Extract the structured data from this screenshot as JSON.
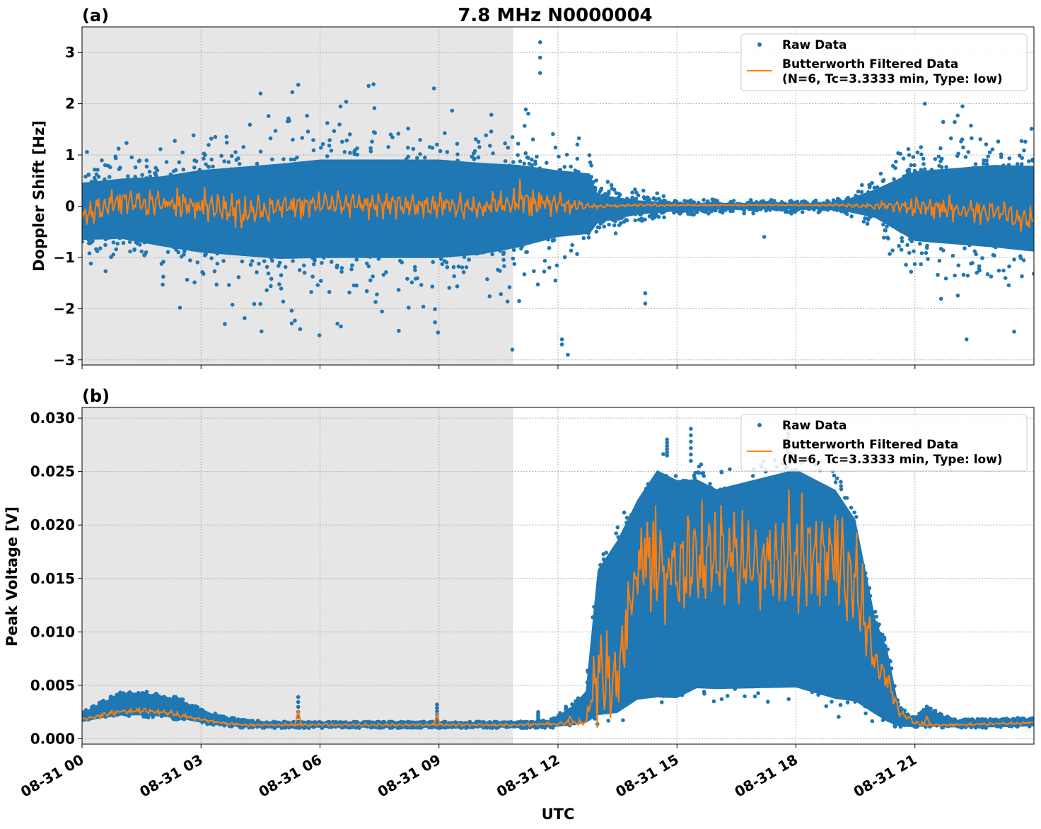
{
  "figure": {
    "title": "7.8 MHz N0000004",
    "xlabel": "UTC",
    "xtick_labels": [
      "08-31 00",
      "08-31 03",
      "08-31 06",
      "08-31 09",
      "08-31 12",
      "08-31 15",
      "08-31 18",
      "08-31 21"
    ],
    "night_shade_until": "08-31 10:52",
    "night_shade_color": "#e6e6e6"
  },
  "legend": {
    "raw_label": "Raw Data",
    "filt_label_1": "Butterworth Filtered Data",
    "filt_label_2": "(N=6, Tc=3.3333 min, Type: low)",
    "raw_color": "#1f77b4",
    "filt_color": "#ff7f0e"
  },
  "chart_data": [
    {
      "type": "scatter",
      "panel": "(a)",
      "ylabel": "Doppler Shift [Hz]",
      "xlim": [
        "08-31 00:00",
        "09-01 00:00"
      ],
      "ylim": [
        -3.1,
        3.5
      ],
      "yticks": [
        -3,
        -2,
        -1,
        0,
        1,
        2,
        3
      ],
      "ytick_labels": [
        "−3",
        "−2",
        "−1",
        "0",
        "1",
        "2",
        "3"
      ],
      "grid": true,
      "legend_position": "top-right",
      "x_hours": [
        0,
        1,
        2,
        3,
        4,
        5,
        6,
        7,
        8,
        9,
        10,
        11,
        12,
        12.8,
        13,
        14,
        15,
        16,
        17,
        18,
        19,
        20,
        21,
        22,
        23,
        24
      ],
      "raw_spread_lo": [
        -1.0,
        -1.0,
        -1.2,
        -1.4,
        -1.5,
        -1.6,
        -1.6,
        -1.6,
        -1.6,
        -1.6,
        -1.5,
        -1.3,
        -1.0,
        -0.9,
        -0.5,
        -0.25,
        -0.15,
        -0.1,
        -0.1,
        -0.1,
        -0.1,
        -0.4,
        -1.1,
        -1.2,
        -1.3,
        -1.4
      ],
      "raw_spread_hi": [
        0.8,
        0.9,
        1.0,
        1.2,
        1.3,
        1.4,
        1.5,
        1.5,
        1.5,
        1.5,
        1.4,
        1.3,
        1.1,
        1.0,
        0.4,
        0.2,
        0.12,
        0.1,
        0.1,
        0.1,
        0.1,
        0.5,
        1.1,
        1.2,
        1.3,
        1.3
      ],
      "filtered_mean": [
        -0.2,
        0.1,
        0.05,
        0.0,
        -0.1,
        0.0,
        0.05,
        0.05,
        0.05,
        0.0,
        0.0,
        0.1,
        0.05,
        0.0,
        0.0,
        0.02,
        0.02,
        0.02,
        0.02,
        0.02,
        0.02,
        0.0,
        0.0,
        -0.05,
        -0.1,
        -0.3
      ],
      "filtered_amplitude": [
        0.25,
        0.2,
        0.2,
        0.25,
        0.25,
        0.22,
        0.22,
        0.2,
        0.2,
        0.2,
        0.2,
        0.25,
        0.18,
        0.05,
        0.03,
        0.02,
        0.02,
        0.01,
        0.01,
        0.01,
        0.02,
        0.05,
        0.15,
        0.18,
        0.2,
        0.2
      ],
      "outliers": [
        [
          11.55,
          3.2
        ],
        [
          11.55,
          2.9
        ],
        [
          11.55,
          2.6
        ],
        [
          10.85,
          -2.8
        ],
        [
          12.1,
          -2.6
        ],
        [
          12.1,
          -2.7
        ],
        [
          5.45,
          2.37
        ],
        [
          4.5,
          2.2
        ],
        [
          7.35,
          2.38
        ],
        [
          14.2,
          -1.7
        ],
        [
          14.2,
          -1.9
        ],
        [
          22.3,
          -2.6
        ],
        [
          23.5,
          -2.45
        ],
        [
          5.5,
          -2.4
        ],
        [
          3.6,
          -2.3
        ],
        [
          17.2,
          -0.6
        ],
        [
          22.2,
          1.95
        ],
        [
          21.25,
          2.0
        ],
        [
          12.25,
          -2.9
        ]
      ]
    },
    {
      "type": "scatter",
      "panel": "(b)",
      "ylabel": "Peak Voltage [V]",
      "xlim": [
        "08-31 00:00",
        "09-01 00:00"
      ],
      "ylim": [
        -0.0005,
        0.031
      ],
      "yticks": [
        0.0,
        0.005,
        0.01,
        0.015,
        0.02,
        0.025,
        0.03
      ],
      "ytick_labels": [
        "0.000",
        "0.005",
        "0.010",
        "0.015",
        "0.020",
        "0.025",
        "0.030"
      ],
      "grid": true,
      "legend_position": "top-right",
      "x_hours": [
        0,
        0.5,
        1,
        1.5,
        2,
        2.5,
        3,
        3.5,
        4,
        5,
        6,
        7,
        8,
        9,
        10,
        11,
        11.8,
        12.3,
        12.7,
        13,
        13.5,
        14,
        14.5,
        15,
        15.5,
        16,
        17,
        18,
        19,
        19.5,
        20,
        20.3,
        20.6,
        21,
        21.3,
        22,
        23,
        24
      ],
      "raw_lo": [
        0.0015,
        0.0018,
        0.002,
        0.002,
        0.0019,
        0.0017,
        0.0014,
        0.0012,
        0.001,
        0.001,
        0.001,
        0.001,
        0.001,
        0.001,
        0.001,
        0.001,
        0.001,
        0.0011,
        0.0012,
        0.001,
        0.001,
        0.002,
        0.002,
        0.002,
        0.003,
        0.003,
        0.003,
        0.003,
        0.002,
        0.002,
        0.0015,
        0.001,
        0.001,
        0.001,
        0.001,
        0.001,
        0.001,
        0.0011
      ],
      "raw_hi": [
        0.0025,
        0.0035,
        0.0045,
        0.0045,
        0.0042,
        0.0038,
        0.0028,
        0.0022,
        0.0018,
        0.0016,
        0.0016,
        0.0016,
        0.0016,
        0.0016,
        0.0016,
        0.0016,
        0.0018,
        0.003,
        0.0047,
        0.017,
        0.02,
        0.024,
        0.027,
        0.026,
        0.026,
        0.025,
        0.026,
        0.027,
        0.025,
        0.022,
        0.012,
        0.009,
        0.003,
        0.002,
        0.003,
        0.0018,
        0.0019,
        0.002
      ],
      "filtered_mean": [
        0.0018,
        0.0022,
        0.0026,
        0.0026,
        0.0025,
        0.0022,
        0.0018,
        0.0015,
        0.0013,
        0.0013,
        0.0013,
        0.0013,
        0.0013,
        0.0013,
        0.0013,
        0.0013,
        0.0014,
        0.0015,
        0.0015,
        0.006,
        0.006,
        0.016,
        0.017,
        0.016,
        0.017,
        0.017,
        0.016,
        0.017,
        0.017,
        0.015,
        0.007,
        0.0055,
        0.0025,
        0.0015,
        0.0013,
        0.0013,
        0.0014,
        0.0015
      ],
      "filtered_amplitude": [
        0.0001,
        0.0002,
        0.0002,
        0.0002,
        0.0002,
        0.0002,
        0.0001,
        0.0001,
        0.0001,
        0.0001,
        0.0001,
        0.0001,
        0.0001,
        0.0001,
        0.0001,
        0.0001,
        0.0001,
        0.0002,
        0.0002,
        0.004,
        0.004,
        0.003,
        0.005,
        0.004,
        0.004,
        0.004,
        0.004,
        0.004,
        0.004,
        0.004,
        0.001,
        0.001,
        0.0003,
        0.0002,
        0.0001,
        0.0001,
        0.0001,
        0.0001
      ],
      "spikes": [
        [
          5.45,
          0.0039
        ],
        [
          8.95,
          0.0032
        ],
        [
          11.5,
          0.0025
        ],
        [
          21.3,
          0.0024
        ],
        [
          14.75,
          0.028
        ],
        [
          15.35,
          0.029
        ],
        [
          17.8,
          0.029
        ],
        [
          12.2,
          0.003
        ]
      ],
      "filtered_spikes": [
        [
          5.45,
          0.0027
        ],
        [
          8.95,
          0.0023
        ],
        [
          21.3,
          0.0021
        ],
        [
          12.3,
          0.0021
        ]
      ]
    }
  ]
}
